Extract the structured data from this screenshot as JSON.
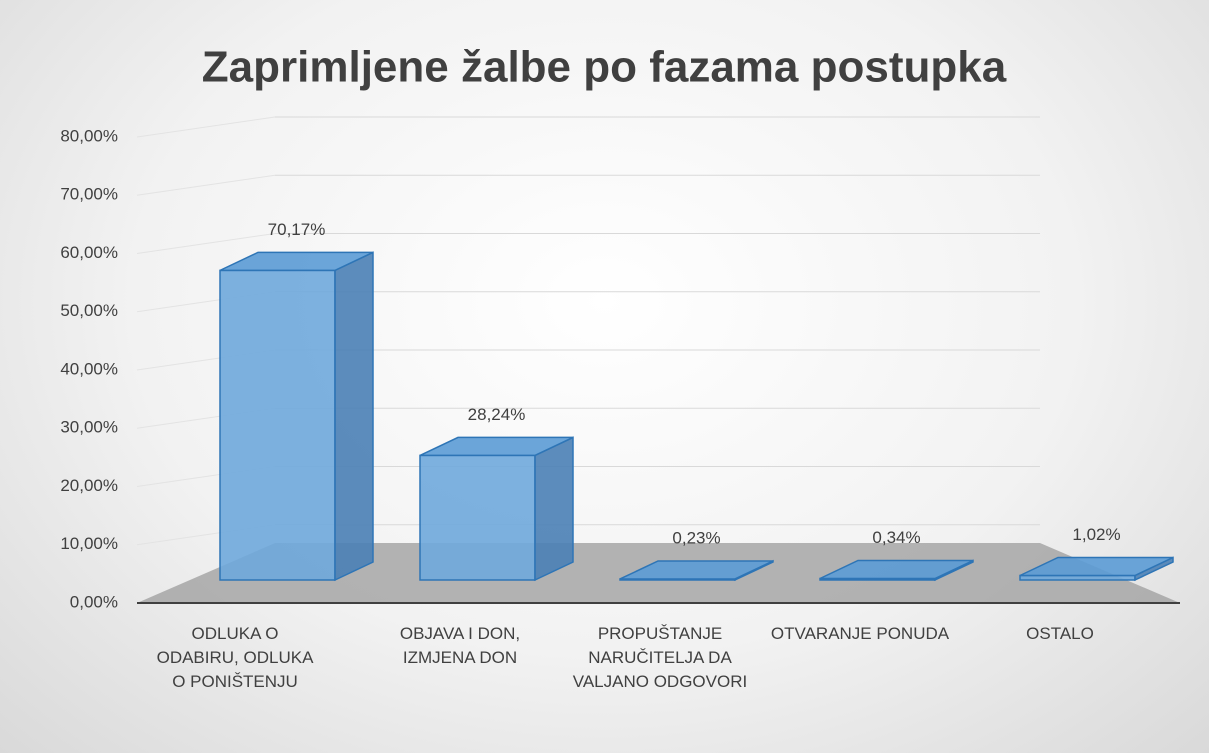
{
  "chart_data": {
    "type": "bar3d",
    "title": "Zaprimljene žalbe po fazama postupka",
    "categories": [
      "ODLUKA O ODABIRU, ODLUKA O PONIŠTENJU",
      "OBJAVA I DON, IZMJENA DON",
      "PROPUŠTANJE NARUČITELJA DA VALJANO ODGOVORI",
      "OTVARANJE PONUDA",
      "OSTALO"
    ],
    "values": [
      70.17,
      28.24,
      0.23,
      0.34,
      1.02
    ],
    "value_labels": [
      "70,17%",
      "28,24%",
      "0,23%",
      "0,34%",
      "1,02%"
    ],
    "color": "#6fa8dc",
    "ylim": [
      0,
      80
    ],
    "yticks": [
      {
        "value": 0,
        "label": "0,00%"
      },
      {
        "value": 10,
        "label": "10,00%"
      },
      {
        "value": 20,
        "label": "20,00%"
      },
      {
        "value": 30,
        "label": "30,00%"
      },
      {
        "value": 40,
        "label": "40,00%"
      },
      {
        "value": 50,
        "label": "50,00%"
      },
      {
        "value": 60,
        "label": "60,00%"
      },
      {
        "value": 70,
        "label": "70,00%"
      },
      {
        "value": 80,
        "label": "80,00%"
      }
    ],
    "grid": true
  }
}
